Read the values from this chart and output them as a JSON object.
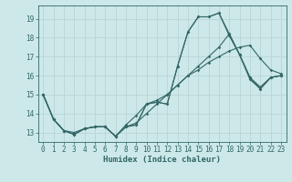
{
  "xlabel": "Humidex (Indice chaleur)",
  "xlim": [
    -0.5,
    23.5
  ],
  "ylim": [
    12.5,
    19.7
  ],
  "yticks": [
    13,
    14,
    15,
    16,
    17,
    18,
    19
  ],
  "xticks": [
    0,
    1,
    2,
    3,
    4,
    5,
    6,
    7,
    8,
    9,
    10,
    11,
    12,
    13,
    14,
    15,
    16,
    17,
    18,
    19,
    20,
    21,
    22,
    23
  ],
  "background_color": "#cce8e8",
  "grid_color": "#b8d4d4",
  "line_color": "#336666",
  "series": [
    [
      15.0,
      13.7,
      13.1,
      12.9,
      13.2,
      13.3,
      13.3,
      12.8,
      13.3,
      13.4,
      14.5,
      14.6,
      14.5,
      16.5,
      18.3,
      19.1,
      19.1,
      19.3,
      18.1,
      17.1,
      15.8,
      15.3,
      15.9,
      16.0
    ],
    [
      15.0,
      13.7,
      13.1,
      12.9,
      13.2,
      13.3,
      13.3,
      12.8,
      13.3,
      13.4,
      14.5,
      14.6,
      14.5,
      16.5,
      18.3,
      19.1,
      19.1,
      19.3,
      18.2,
      17.1,
      15.9,
      15.3,
      15.9,
      16.0
    ],
    [
      15.0,
      13.7,
      13.1,
      12.9,
      13.2,
      13.3,
      13.3,
      12.8,
      13.4,
      13.9,
      14.5,
      14.7,
      15.0,
      15.5,
      16.0,
      16.3,
      16.7,
      17.0,
      17.3,
      17.5,
      17.6,
      16.9,
      16.3,
      16.1
    ],
    [
      15.0,
      13.7,
      13.1,
      13.0,
      13.2,
      13.3,
      13.3,
      12.8,
      13.3,
      13.5,
      14.0,
      14.5,
      15.0,
      15.5,
      16.0,
      16.5,
      17.0,
      17.5,
      18.2,
      17.1,
      15.9,
      15.4,
      15.9,
      16.0
    ]
  ]
}
